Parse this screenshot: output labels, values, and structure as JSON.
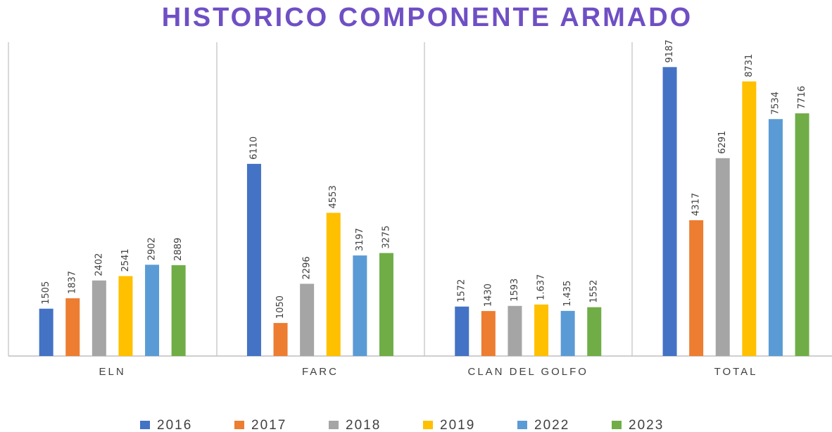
{
  "chart_data": {
    "type": "bar",
    "title": "HISTORICO COMPONENTE ARMADO",
    "categories": [
      "ELN",
      "FARC",
      "CLAN DEL GOLFO",
      "TOTAL"
    ],
    "ylim": [
      0,
      10000
    ],
    "series": [
      {
        "name": "2016",
        "color": "#4472c4",
        "values": [
          1505,
          6110,
          1572,
          9187
        ]
      },
      {
        "name": "2017",
        "color": "#ed7d31",
        "values": [
          1837,
          1050,
          1430,
          4317
        ]
      },
      {
        "name": "2018",
        "color": "#a5a5a5",
        "values": [
          2402,
          2296,
          1593,
          6291
        ]
      },
      {
        "name": "2019",
        "color": "#ffc000",
        "values": [
          2541,
          4553,
          1637,
          8731
        ],
        "value_labels": [
          "2541",
          "4553",
          "1.637",
          "8731"
        ]
      },
      {
        "name": "2022",
        "color": "#5b9bd5",
        "values": [
          2902,
          3197,
          1435,
          7534
        ],
        "value_labels": [
          "2902",
          "3197",
          "1.435",
          "7534"
        ]
      },
      {
        "name": "2023",
        "color": "#70ad47",
        "values": [
          2889,
          3275,
          1552,
          7716
        ]
      }
    ],
    "legend": "bottom"
  }
}
